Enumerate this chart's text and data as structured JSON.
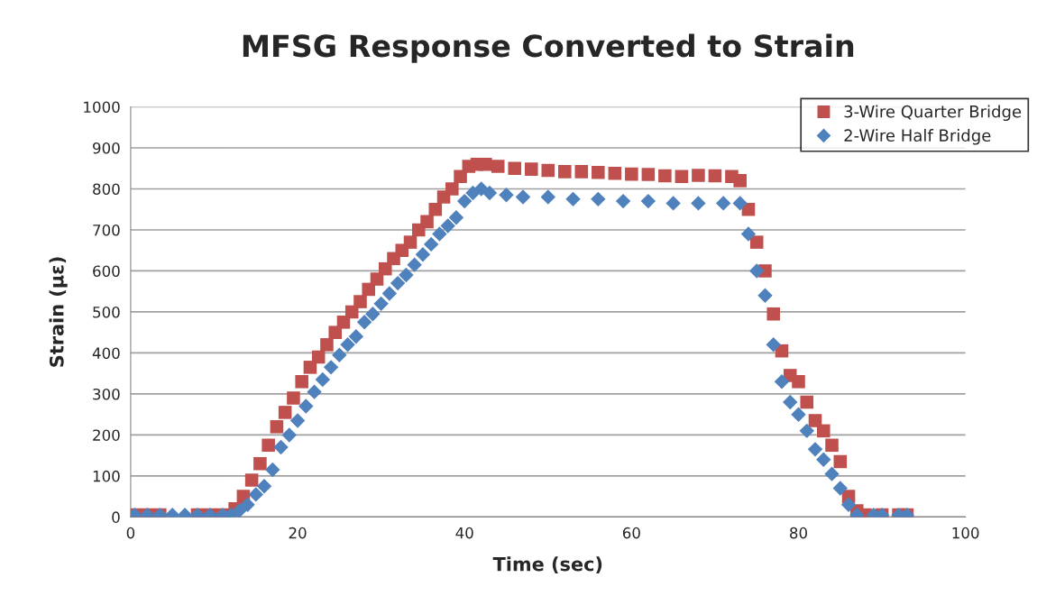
{
  "chart_data": {
    "type": "scatter",
    "title": "MFSG Response Converted to Strain",
    "xlabel": "Time (sec)",
    "ylabel": "Strain (µε)",
    "xlim": [
      0,
      100
    ],
    "xticks": [
      0,
      20,
      40,
      60,
      80,
      100
    ],
    "ylim": [
      0,
      1000
    ],
    "yticks": [
      0,
      100,
      200,
      300,
      400,
      500,
      600,
      700,
      800,
      900,
      1000
    ],
    "grid": "y",
    "legend": "top right",
    "series": [
      {
        "name": "3-Wire Quarter Bridge",
        "color": "#c0504d",
        "marker": "square",
        "x": [
          0.5,
          2,
          3.5,
          8,
          9.5,
          11,
          12.5,
          13.5,
          14.5,
          15.5,
          16.5,
          17.5,
          18.5,
          19.5,
          20.5,
          21.5,
          22.5,
          23.5,
          24.5,
          25.5,
          26.5,
          27.5,
          28.5,
          29.5,
          30.5,
          31.5,
          32.5,
          33.5,
          34.5,
          35.5,
          36.5,
          37.5,
          38.5,
          39.5,
          40.5,
          41.5,
          42.5,
          44,
          46,
          48,
          50,
          52,
          54,
          56,
          58,
          60,
          62,
          64,
          66,
          68,
          70,
          72,
          73,
          74,
          75,
          76,
          77,
          78,
          79,
          80,
          81,
          82,
          83,
          84,
          85,
          86,
          87,
          88,
          90,
          92,
          93
        ],
        "values": [
          5,
          5,
          5,
          5,
          5,
          5,
          20,
          50,
          90,
          130,
          175,
          220,
          255,
          290,
          330,
          365,
          390,
          420,
          450,
          475,
          500,
          525,
          555,
          580,
          605,
          630,
          650,
          670,
          700,
          720,
          750,
          780,
          800,
          830,
          855,
          860,
          860,
          855,
          850,
          848,
          845,
          842,
          842,
          840,
          838,
          836,
          835,
          832,
          830,
          833,
          832,
          830,
          820,
          750,
          670,
          600,
          495,
          405,
          345,
          330,
          280,
          235,
          210,
          175,
          135,
          50,
          15,
          5,
          5,
          5,
          5
        ]
      },
      {
        "name": "2-Wire Half Bridge",
        "color": "#4f81bd",
        "marker": "diamond",
        "x": [
          0.5,
          2,
          3.5,
          5,
          6.5,
          8,
          9.5,
          11,
          12,
          13,
          14,
          15,
          16,
          17,
          18,
          19,
          20,
          21,
          22,
          23,
          24,
          25,
          26,
          27,
          28,
          29,
          30,
          31,
          32,
          33,
          34,
          35,
          36,
          37,
          38,
          39,
          40,
          41,
          42,
          43,
          45,
          47,
          50,
          53,
          56,
          59,
          62,
          65,
          68,
          71,
          73,
          74,
          75,
          76,
          77,
          78,
          79,
          80,
          81,
          82,
          83,
          84,
          85,
          86,
          87,
          89,
          90,
          92,
          93
        ],
        "values": [
          5,
          5,
          5,
          5,
          5,
          5,
          5,
          5,
          5,
          15,
          30,
          55,
          75,
          115,
          170,
          200,
          235,
          270,
          305,
          335,
          365,
          395,
          420,
          440,
          475,
          495,
          520,
          545,
          570,
          590,
          615,
          640,
          665,
          690,
          710,
          730,
          770,
          790,
          800,
          790,
          785,
          780,
          780,
          775,
          775,
          770,
          770,
          765,
          765,
          765,
          765,
          690,
          600,
          540,
          420,
          330,
          280,
          250,
          210,
          165,
          140,
          105,
          70,
          30,
          5,
          5,
          5,
          5,
          5
        ]
      }
    ]
  }
}
